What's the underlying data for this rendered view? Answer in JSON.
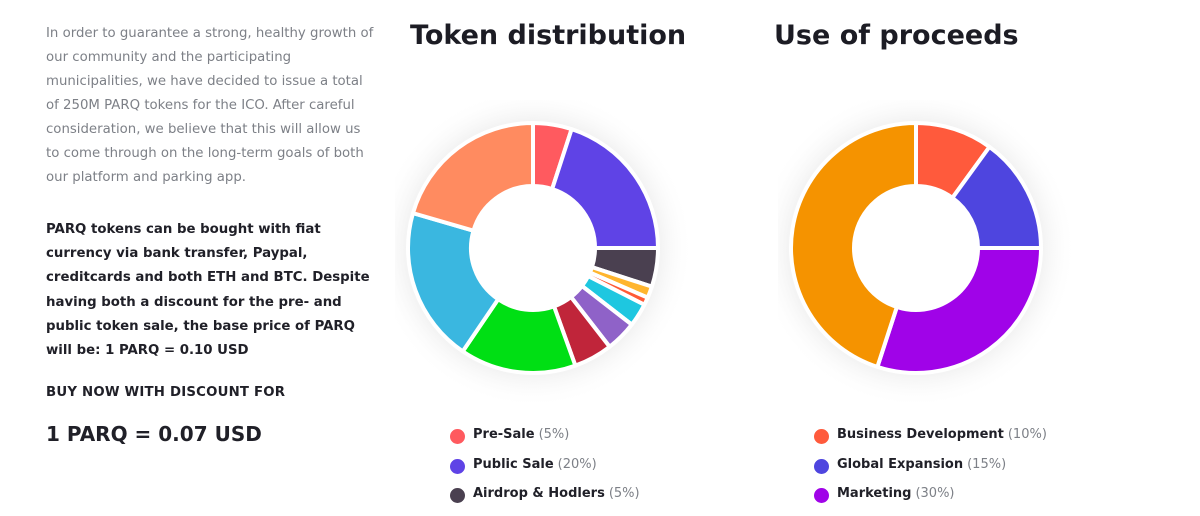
{
  "intro": {
    "text": "In order to guarantee a strong, healthy growth of our community and the participating municipalities, we have decided to issue a total of 250M PARQ tokens for the ICO. After careful consideration, we believe that this will allow us to come through on the long-term goals of both our platform and parking app."
  },
  "highlight": {
    "text": "PARQ tokens can be bought with fiat currency via bank transfer, Paypal, creditcards and both ETH and BTC. Despite having both a discount for the pre- and public token sale, the base price of PARQ will be: 1 PARQ = 0.10 USD"
  },
  "buy": {
    "label": "BUY NOW WITH DISCOUNT FOR",
    "price": "1 PARQ = 0.07 USD"
  },
  "chart_data": [
    {
      "type": "pie",
      "title": "Token distribution",
      "slices": [
        {
          "name": "Pre-Sale",
          "value": 5,
          "color": "#ff5a5f",
          "label": "Pre-Sale",
          "pct": "(5%)"
        },
        {
          "name": "Public Sale",
          "value": 20,
          "color": "#5f43e6",
          "label": "Public Sale",
          "pct": "(20%)"
        },
        {
          "name": "Airdrop & Hodlers",
          "value": 5,
          "color": "#4a4050",
          "label": "Airdrop & Hodlers",
          "pct": "(5%)"
        },
        {
          "name": "",
          "value": 1.5,
          "color": "#ffb52e"
        },
        {
          "name": "",
          "value": 1,
          "color": "#ff5a36"
        },
        {
          "name": "",
          "value": 3,
          "color": "#1ec7e0"
        },
        {
          "name": "",
          "value": 4,
          "color": "#8f62c8"
        },
        {
          "name": "",
          "value": 5,
          "color": "#c0253a"
        },
        {
          "name": "",
          "value": 15,
          "color": "#00df14"
        },
        {
          "name": "",
          "value": 20,
          "color": "#3ab7e0"
        },
        {
          "name": "",
          "value": 20.5,
          "color": "#ff8b60"
        }
      ]
    },
    {
      "type": "pie",
      "title": "Use of proceeds",
      "slices": [
        {
          "name": "Business Development",
          "value": 10,
          "color": "#ff5a3c",
          "label": "Business Development",
          "pct": "(10%)"
        },
        {
          "name": "Global Expansion",
          "value": 15,
          "color": "#4e45df",
          "label": "Global Expansion",
          "pct": "(15%)"
        },
        {
          "name": "Marketing",
          "value": 30,
          "color": "#a003e8",
          "label": "Marketing",
          "pct": "(30%)"
        },
        {
          "name": "",
          "value": 45,
          "color": "#f59300"
        }
      ]
    }
  ]
}
